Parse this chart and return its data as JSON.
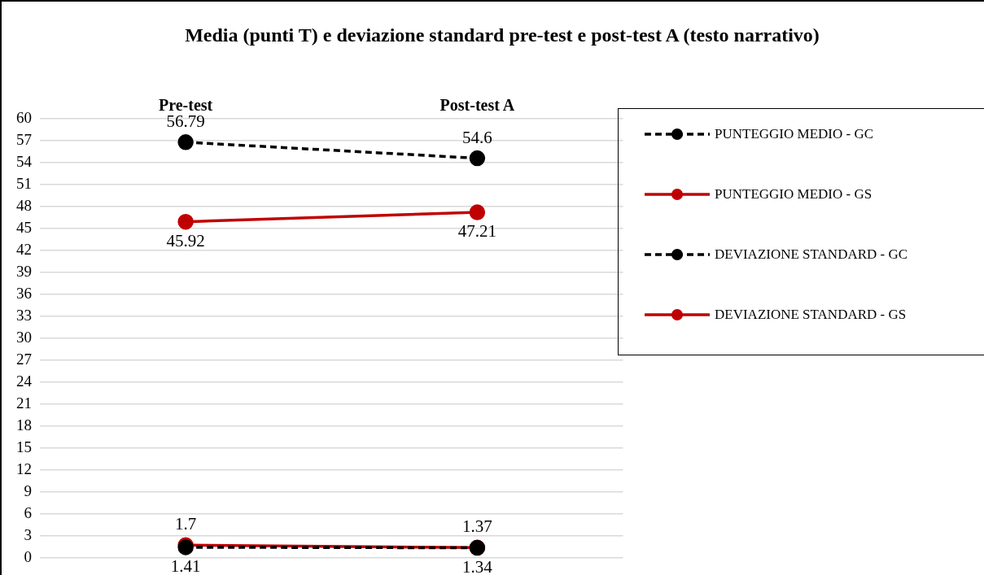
{
  "chart_data": {
    "type": "line",
    "title": "Media (punti T) e deviazione standard pre-test e post-test A (testo narrativo)",
    "categories": [
      "Pre-test",
      "Post-test A"
    ],
    "series": [
      {
        "name": "PUNTEGGIO MEDIO - GC",
        "color": "#000000",
        "values": [
          56.79,
          54.6
        ],
        "line_style": "dashed"
      },
      {
        "name": "PUNTEGGIO MEDIO - GS",
        "color": "#c00000",
        "values": [
          45.92,
          47.21
        ],
        "line_style": "solid"
      },
      {
        "name": "DEVIAZIONE STANDARD - GC",
        "color": "#000000",
        "values": [
          1.41,
          1.34
        ],
        "line_style": "dashed"
      },
      {
        "name": "DEVIAZIONE STANDARD - GS",
        "color": "#c00000",
        "values": [
          1.7,
          1.37
        ],
        "line_style": "solid"
      }
    ],
    "ylim": [
      0,
      60
    ],
    "yticks": [
      0,
      3,
      6,
      9,
      12,
      15,
      18,
      21,
      24,
      27,
      30,
      33,
      36,
      39,
      42,
      45,
      48,
      51,
      54,
      57,
      60
    ],
    "grid": "y",
    "legend": "top right",
    "marker": "circle",
    "data_labels": true
  }
}
